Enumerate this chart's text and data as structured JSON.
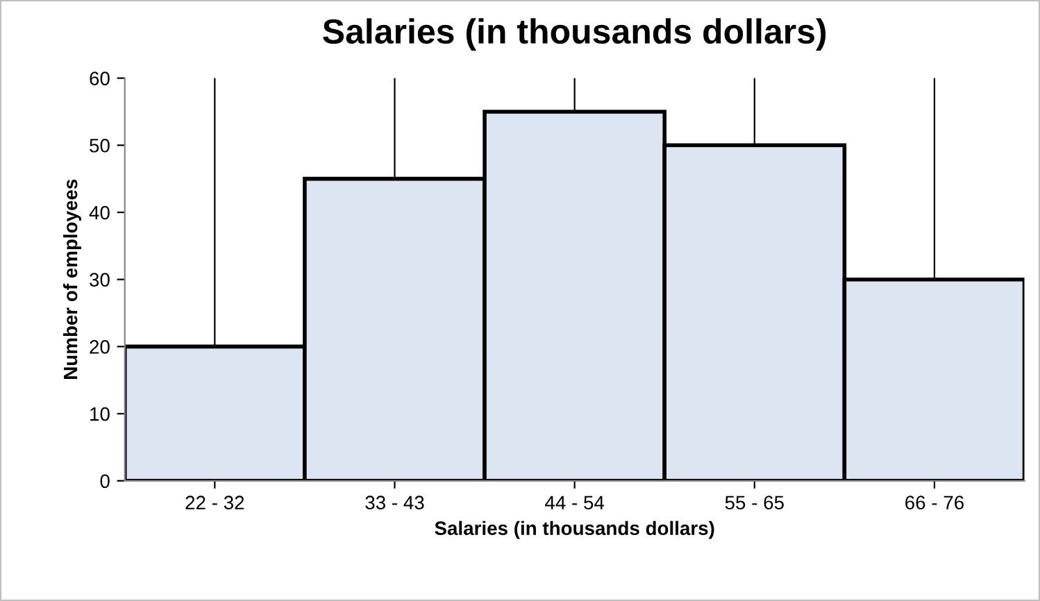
{
  "chart_data": {
    "type": "bar",
    "title": "Salaries (in thousands dollars)",
    "xlabel": "Salaries (in thousands dollars)",
    "ylabel": "Number of employees",
    "categories": [
      "22 - 32",
      "33 - 43",
      "44 - 54",
      "55 - 65",
      "66 - 76"
    ],
    "values": [
      20,
      45,
      55,
      50,
      30
    ],
    "color": "#dce6f2",
    "ylim": [
      0,
      60
    ],
    "yticks": [
      0,
      10,
      20,
      30,
      40,
      50,
      60
    ],
    "grid": "x",
    "legend": false
  }
}
